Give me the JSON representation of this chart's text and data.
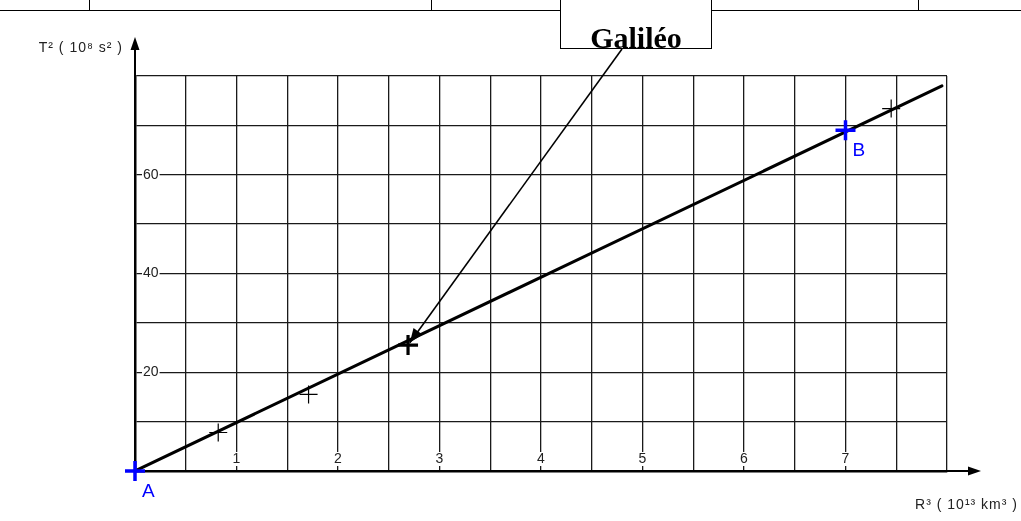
{
  "chart_data": {
    "type": "scatter",
    "xlabel": "R³ ( 10¹³ km³ )",
    "ylabel": "T² ( 10⁸ s² )",
    "xlim": [
      0,
      8
    ],
    "ylim": [
      0,
      80
    ],
    "xticks": [
      {
        "value": 0,
        "label": null
      },
      {
        "value": 0.5,
        "label": null
      },
      1,
      {
        "value": 1.5,
        "label": null
      },
      2,
      {
        "value": 2.5,
        "label": null
      },
      3,
      {
        "value": 3.5,
        "label": null
      },
      4,
      {
        "value": 4.5,
        "label": null
      },
      5,
      {
        "value": 5.5,
        "label": null
      },
      6,
      {
        "value": 6.5,
        "label": null
      },
      7,
      {
        "value": 7.5,
        "label": null
      },
      {
        "value": 8,
        "label": null
      }
    ],
    "yticks": [
      {
        "value": 0,
        "label": null
      },
      {
        "value": 10,
        "label": null
      },
      20,
      {
        "value": 30,
        "label": null
      },
      40,
      {
        "value": 50,
        "label": null
      },
      60,
      {
        "value": 70,
        "label": null
      },
      {
        "value": 80,
        "label": null
      }
    ],
    "grid": true,
    "marker": "cross",
    "series": [
      {
        "color": "#000000",
        "x": [
          0.82,
          1.71,
          7.45
        ],
        "values": [
          7.8,
          15.5,
          73.4
        ]
      },
      {
        "color": "#000000",
        "x": [
          2.69
        ],
        "values": [
          25.5
        ]
      },
      {
        "color": "#0000ff",
        "x": [
          0,
          7
        ],
        "values": [
          0,
          69
        ]
      },
      {
        "type": "line",
        "color": "#000000",
        "marker": "none",
        "x": [
          0,
          7.95
        ],
        "values": [
          0,
          78
        ]
      }
    ],
    "annotations": [
      {
        "text": "Galiléo",
        "x": 2.69,
        "y": 25.5
      },
      {
        "text": "A",
        "x": 0,
        "y": 0
      },
      {
        "text": "B",
        "x": 7,
        "y": 69
      }
    ]
  }
}
